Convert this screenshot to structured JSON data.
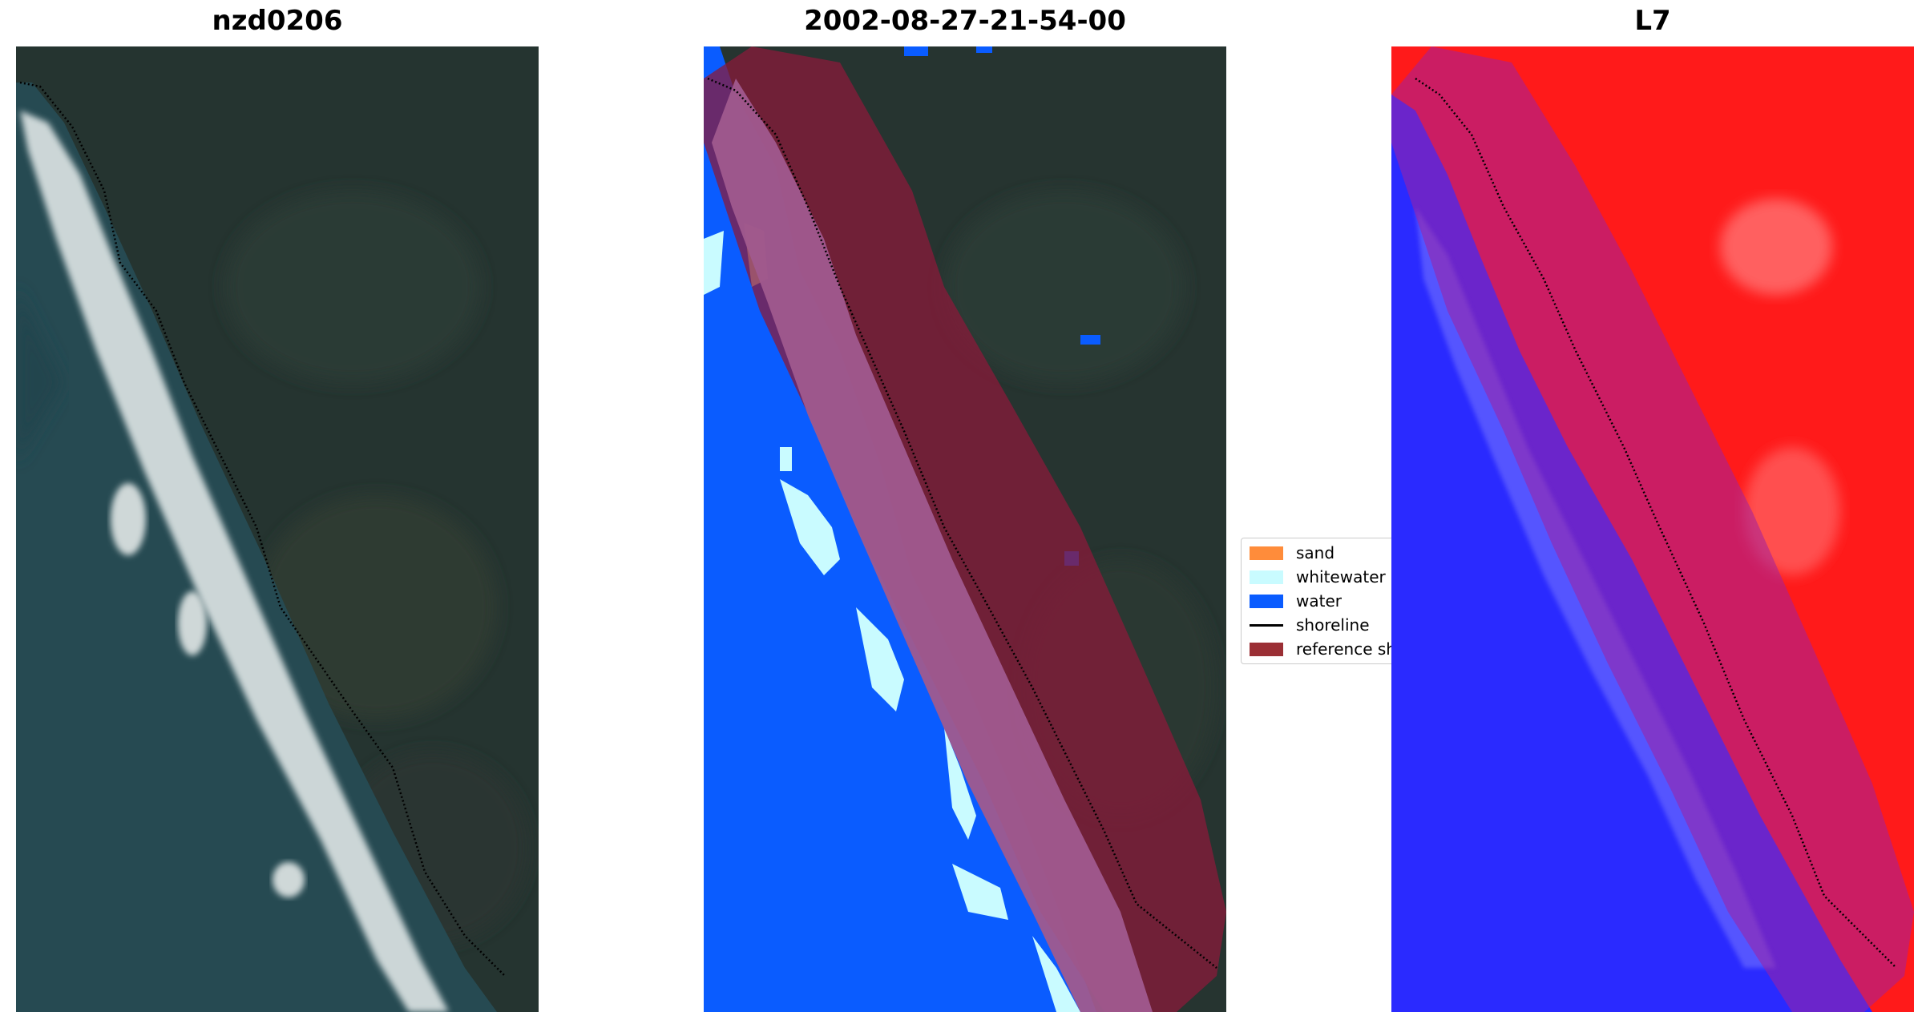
{
  "panels": [
    {
      "title": "nzd0206"
    },
    {
      "title": "2002-08-27-21-54-00"
    },
    {
      "title": "L7"
    }
  ],
  "legend": {
    "items": [
      {
        "label": "sand",
        "color": "#ff8c3a",
        "kind": "patch"
      },
      {
        "label": "whitewater",
        "color": "#c9fbff",
        "kind": "patch"
      },
      {
        "label": "water",
        "color": "#0a5cff",
        "kind": "patch"
      },
      {
        "label": "shoreline",
        "color": "#000000",
        "kind": "line"
      },
      {
        "label": "reference shoreline buffer",
        "color": "#9b2f35",
        "kind": "patch"
      }
    ]
  },
  "colors": {
    "ocean": "#264a52",
    "land": "#253430",
    "surf": "#dfe6e6",
    "water_class": "#0a5cff",
    "whitewater_class": "#c9fbff",
    "buffer": "#8a1a3a",
    "index_positive": "#ff1a1a",
    "index_negative": "#2a2aff"
  }
}
